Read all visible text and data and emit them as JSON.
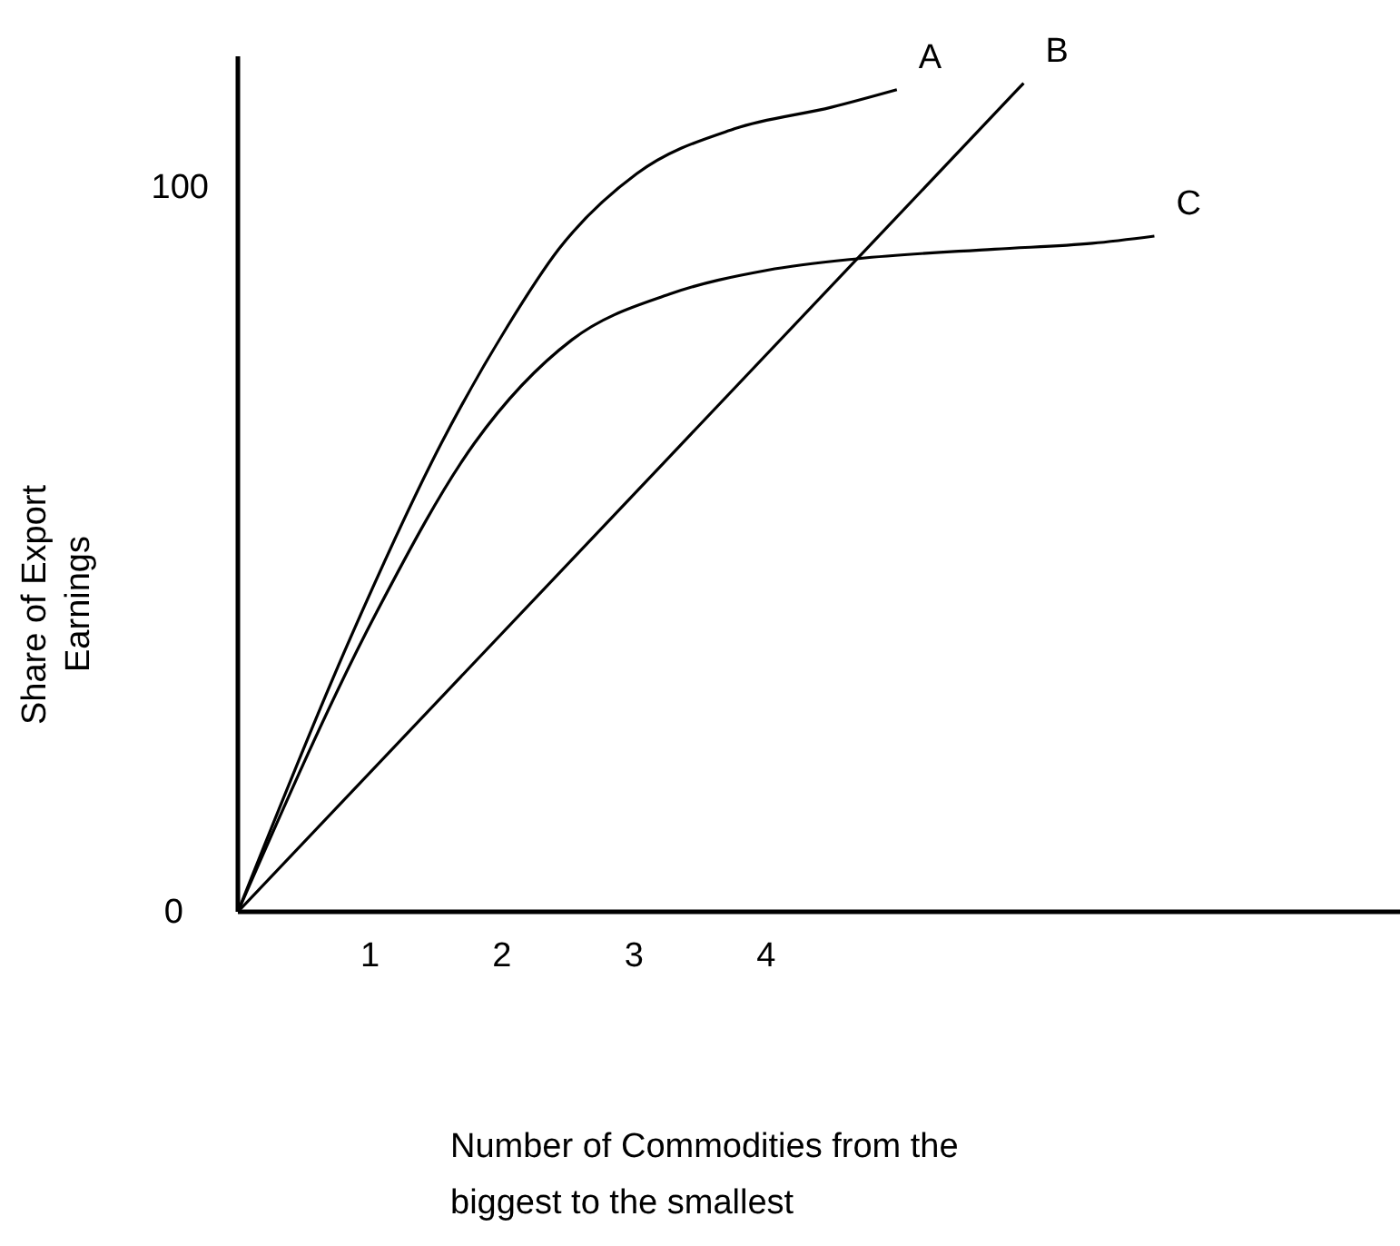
{
  "chart_data": {
    "type": "line",
    "xlabel": "Number of Commodities from the biggest to the smallest",
    "ylabel": "Share of Export Earnings",
    "xlim": [
      0,
      8.8
    ],
    "ylim": [
      0,
      118
    ],
    "xticks": [
      1,
      2,
      3,
      4
    ],
    "yticks": [
      0,
      100
    ],
    "grid": false,
    "legend": false,
    "marker": "none",
    "line_style": "solid",
    "series": [
      {
        "name": "A",
        "color": "#000000",
        "x": [
          0,
          0.85,
          1.54,
          2.04,
          2.43,
          3.02,
          3.76,
          4.5,
          4.99
        ],
        "values": [
          0,
          37.7,
          64.6,
          80.7,
          91.4,
          101.8,
          108,
          111,
          113.4
        ]
      },
      {
        "name": "B",
        "color": "#000000",
        "x": [
          0,
          3,
          5.95
        ],
        "values": [
          0,
          57.6,
          114.3
        ]
      },
      {
        "name": "C",
        "color": "#000000",
        "x": [
          0,
          1.05,
          1.79,
          2.53,
          3.27,
          4.01,
          4.7,
          5.73,
          6.47,
          6.94
        ],
        "values": [
          0,
          41.3,
          64.6,
          78.9,
          85.2,
          88.5,
          90.1,
          91.4,
          92.2,
          93.2
        ]
      }
    ]
  }
}
